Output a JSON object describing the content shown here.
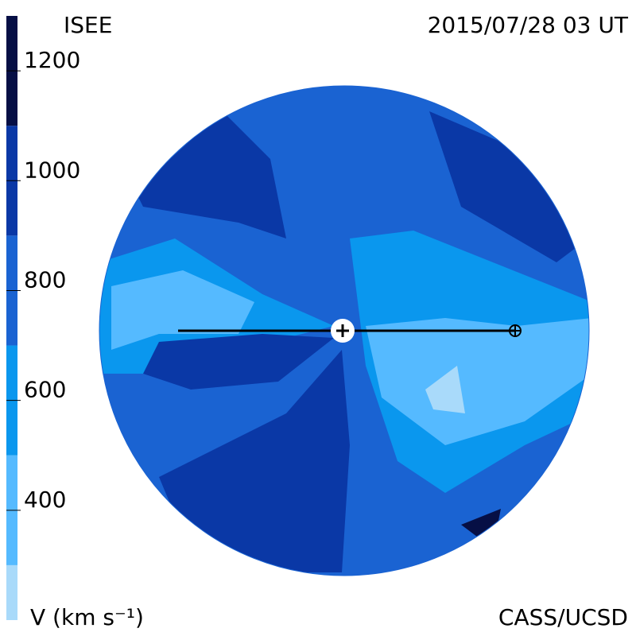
{
  "chart_data": {
    "type": "contour",
    "title": "ISEE",
    "subtitle": "2015/07/28 03 UT",
    "colorbar": {
      "label": "V (km s⁻¹)",
      "lim": [
        200,
        1300
      ],
      "ticks": [
        400,
        600,
        800,
        1000,
        1200
      ],
      "levels": [
        300,
        500,
        700,
        900,
        1100
      ],
      "colors": [
        "#a9dafa",
        "#55baff",
        "#0a97ee",
        "#1a63d2",
        "#0a38a6",
        "#060f45"
      ]
    },
    "credit": "CASS/UCSD"
  }
}
